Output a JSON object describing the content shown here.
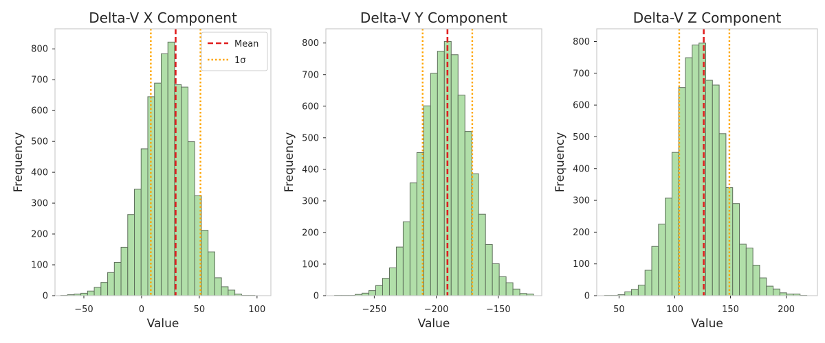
{
  "chart_data": [
    {
      "type": "bar",
      "title": "Delta-V X Component",
      "xlabel": "Value",
      "ylabel": "Frequency",
      "xlim": [
        -75,
        112
      ],
      "ylim": [
        0,
        865
      ],
      "xticks": [
        -50,
        0,
        50,
        100
      ],
      "yticks": [
        0,
        100,
        200,
        300,
        400,
        500,
        600,
        700,
        800
      ],
      "bin_start": -70,
      "bin_width": 5.8,
      "counts": [
        1,
        3,
        5,
        8,
        15,
        27,
        43,
        75,
        108,
        157,
        263,
        345,
        476,
        645,
        689,
        784,
        822,
        684,
        676,
        499,
        324,
        212,
        142,
        58,
        29,
        18,
        5,
        1,
        1
      ],
      "mean": 29.5,
      "sigma_lines": [
        8,
        51
      ],
      "grid": false,
      "legend": {
        "placement": "top-right",
        "entries": [
          {
            "label": "Mean",
            "color": "#e01f1f",
            "style": "dashed"
          },
          {
            "label": "1σ",
            "color": "#ffa500",
            "style": "dotted"
          }
        ]
      }
    },
    {
      "type": "bar",
      "title": "Delta-V Y Component",
      "xlabel": "Value",
      "ylabel": "Frequency",
      "xlim": [
        -289,
        -115
      ],
      "ylim": [
        0,
        845
      ],
      "xticks": [
        -250,
        -200,
        -150
      ],
      "yticks": [
        0,
        100,
        200,
        300,
        400,
        500,
        600,
        700,
        800
      ],
      "bin_start": -282,
      "bin_width": 5.53,
      "counts": [
        1,
        1,
        1,
        4,
        8,
        16,
        32,
        55,
        88,
        154,
        234,
        357,
        453,
        601,
        704,
        774,
        805,
        763,
        635,
        520,
        386,
        258,
        162,
        101,
        60,
        41,
        21,
        7,
        5
      ],
      "mean": -191,
      "sigma_lines": [
        -211,
        -171
      ],
      "grid": false
    },
    {
      "type": "bar",
      "title": "Delta-V Z Component",
      "xlabel": "Value",
      "ylabel": "Frequency",
      "xlim": [
        30,
        228
      ],
      "ylim": [
        0,
        840
      ],
      "xticks": [
        50,
        100,
        150,
        200
      ],
      "yticks": [
        0,
        100,
        200,
        300,
        400,
        500,
        600,
        700,
        800
      ],
      "bin_start": 37,
      "bin_width": 6.05,
      "counts": [
        1,
        1,
        3,
        12,
        20,
        33,
        80,
        155,
        225,
        307,
        451,
        655,
        749,
        789,
        795,
        678,
        663,
        510,
        340,
        290,
        162,
        150,
        96,
        56,
        30,
        21,
        9,
        5,
        5,
        1
      ],
      "mean": 126,
      "sigma_lines": [
        104,
        149
      ],
      "grid": false
    }
  ],
  "colors": {
    "bar_fill": "#b1dfa9",
    "bar_edge": "#5d6e5a",
    "mean_line": "#e01f1f",
    "sigma_line": "#ffa500",
    "axes_edge": "#cccccc"
  }
}
